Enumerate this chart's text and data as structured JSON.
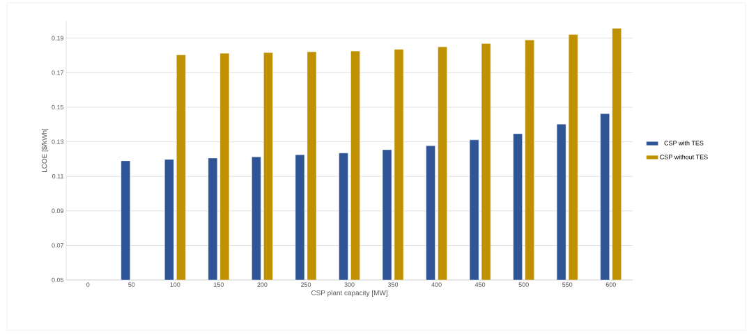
{
  "chart_data": {
    "type": "bar",
    "xlabel": "CSP plant capacity [MW]",
    "ylabel": "LCOE [$/kWh]",
    "categories": [
      "0",
      "50",
      "100",
      "150",
      "200",
      "250",
      "300",
      "350",
      "400",
      "450",
      "500",
      "550",
      "600"
    ],
    "series": [
      {
        "name": "CSP with TES",
        "color": "#2f5597",
        "values": [
          null,
          0.119,
          0.1198,
          0.1206,
          0.1213,
          0.1225,
          0.1235,
          0.1254,
          0.1277,
          0.1311,
          0.1347,
          0.1402,
          0.1463
        ]
      },
      {
        "name": "CSP without TES",
        "color": "#bf9000",
        "values": [
          null,
          null,
          0.1803,
          0.1813,
          0.1817,
          0.1821,
          0.1826,
          0.1835,
          0.185,
          0.1869,
          0.1889,
          0.1921,
          0.1957
        ]
      }
    ],
    "ylim": [
      0.05,
      0.2
    ],
    "yticks": [
      0.05,
      0.07,
      0.09,
      0.11,
      0.13,
      0.15,
      0.17,
      0.19
    ],
    "grid": "y",
    "legend": "right"
  }
}
